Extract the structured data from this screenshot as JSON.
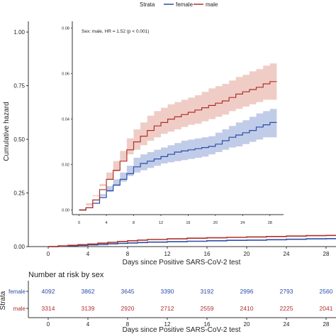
{
  "legend": {
    "title": "Strata",
    "items": [
      {
        "label": "female",
        "color": "#2b4ea8"
      },
      {
        "label": "male",
        "color": "#b0302a"
      }
    ]
  },
  "chart_data": [
    {
      "type": "line",
      "role": "main",
      "ylabel": "Cumulative hazard",
      "xlabel": "Days since Positive SARS-CoV-2 test",
      "xlim": [
        -2,
        29
      ],
      "ylim": [
        0,
        1.05
      ],
      "xticks": [
        0,
        4,
        8,
        12,
        16,
        20,
        24,
        28
      ],
      "xtick_labels": [
        "0",
        "4",
        "8",
        "12",
        "16",
        "20",
        "24",
        "28"
      ],
      "yticks": [
        0.0,
        0.25,
        0.5,
        0.75,
        1.0
      ],
      "ytick_labels": [
        "0.00",
        "0.25",
        "0.50",
        "0.75",
        "1.00"
      ],
      "series": [
        {
          "name": "female",
          "color": "#2b4ea8",
          "x": [
            0,
            1,
            2,
            3,
            4,
            5,
            6,
            7,
            8,
            9,
            10,
            12,
            14,
            16,
            18,
            20,
            22,
            24,
            26,
            28,
            29
          ],
          "y": [
            0.0,
            0.002,
            0.004,
            0.006,
            0.008,
            0.01,
            0.013,
            0.015,
            0.017,
            0.019,
            0.021,
            0.023,
            0.025,
            0.027,
            0.029,
            0.03,
            0.032,
            0.034,
            0.036,
            0.037,
            0.038
          ]
        },
        {
          "name": "male",
          "color": "#b0302a",
          "x": [
            0,
            1,
            2,
            3,
            4,
            5,
            6,
            7,
            8,
            9,
            10,
            12,
            14,
            16,
            18,
            20,
            22,
            24,
            26,
            28,
            29
          ],
          "y": [
            0.0,
            0.003,
            0.006,
            0.009,
            0.012,
            0.016,
            0.02,
            0.024,
            0.027,
            0.03,
            0.033,
            0.036,
            0.039,
            0.041,
            0.043,
            0.045,
            0.047,
            0.049,
            0.051,
            0.052,
            0.053
          ]
        }
      ]
    },
    {
      "type": "line",
      "role": "inset",
      "annotation": "Sex: male, HR = 1.52 (p < 0.001)",
      "xlim": [
        -1,
        30
      ],
      "ylim": [
        -0.002,
        0.083
      ],
      "xticks": [
        0,
        4,
        8,
        12,
        16,
        20,
        24,
        28
      ],
      "xtick_labels": [
        "0",
        "4",
        "8",
        "12",
        "16",
        "20",
        "24",
        "28"
      ],
      "yticks": [
        0.0,
        0.02,
        0.04,
        0.06,
        0.08
      ],
      "ytick_labels": [
        "0.00",
        "0.02",
        "0.04",
        "0.06",
        "0.08"
      ],
      "series": [
        {
          "name": "female",
          "color": "#2b4ea8",
          "band_color": "#9fb0dc",
          "x": [
            0,
            1,
            2,
            3,
            4,
            5,
            6,
            7,
            8,
            9,
            10,
            11,
            12,
            13,
            14,
            15,
            16,
            17,
            18,
            19,
            20,
            21,
            22,
            23,
            24,
            25,
            26,
            27,
            28,
            29
          ],
          "y": [
            0.0,
            0.001,
            0.003,
            0.0055,
            0.0085,
            0.011,
            0.0135,
            0.016,
            0.019,
            0.0205,
            0.0215,
            0.0225,
            0.0235,
            0.0245,
            0.0255,
            0.026,
            0.0265,
            0.027,
            0.0275,
            0.028,
            0.029,
            0.0305,
            0.032,
            0.033,
            0.034,
            0.035,
            0.0365,
            0.0375,
            0.0385,
            0.0385
          ],
          "lower": [
            0.0,
            0.0005,
            0.002,
            0.004,
            0.006,
            0.008,
            0.0105,
            0.0125,
            0.015,
            0.0165,
            0.0175,
            0.0185,
            0.0195,
            0.0205,
            0.021,
            0.0215,
            0.022,
            0.0225,
            0.023,
            0.0235,
            0.0245,
            0.0255,
            0.0265,
            0.0275,
            0.028,
            0.029,
            0.03,
            0.031,
            0.032,
            0.032
          ],
          "upper": [
            0.0,
            0.002,
            0.0045,
            0.007,
            0.0105,
            0.0135,
            0.0165,
            0.0195,
            0.023,
            0.0245,
            0.0255,
            0.0265,
            0.0275,
            0.0285,
            0.0295,
            0.0305,
            0.031,
            0.0315,
            0.032,
            0.0325,
            0.034,
            0.0355,
            0.037,
            0.0385,
            0.0395,
            0.041,
            0.0425,
            0.0435,
            0.0445,
            0.0445
          ]
        },
        {
          "name": "male",
          "color": "#b0302a",
          "band_color": "#e7b2a8",
          "x": [
            0,
            1,
            2,
            3,
            4,
            5,
            6,
            7,
            8,
            9,
            10,
            11,
            12,
            13,
            14,
            15,
            16,
            17,
            18,
            19,
            20,
            21,
            22,
            23,
            24,
            25,
            26,
            27,
            28,
            29
          ],
          "y": [
            0.0,
            0.001,
            0.0045,
            0.009,
            0.0135,
            0.0175,
            0.0215,
            0.0265,
            0.03,
            0.0325,
            0.035,
            0.037,
            0.0385,
            0.04,
            0.041,
            0.042,
            0.043,
            0.044,
            0.045,
            0.046,
            0.047,
            0.048,
            0.0495,
            0.051,
            0.052,
            0.053,
            0.054,
            0.0555,
            0.0565,
            0.0565
          ],
          "lower": [
            0.0,
            0.0005,
            0.003,
            0.0065,
            0.0105,
            0.0135,
            0.017,
            0.0215,
            0.0245,
            0.0265,
            0.0285,
            0.0305,
            0.032,
            0.0335,
            0.0345,
            0.0355,
            0.0365,
            0.0375,
            0.038,
            0.039,
            0.04,
            0.041,
            0.042,
            0.0435,
            0.0445,
            0.0455,
            0.0465,
            0.0475,
            0.0485,
            0.0485
          ],
          "upper": [
            0.0,
            0.002,
            0.006,
            0.0115,
            0.0165,
            0.0215,
            0.026,
            0.0315,
            0.0355,
            0.0385,
            0.0415,
            0.0435,
            0.045,
            0.0465,
            0.0475,
            0.0485,
            0.0495,
            0.0505,
            0.052,
            0.0535,
            0.0545,
            0.0555,
            0.057,
            0.0585,
            0.0595,
            0.061,
            0.062,
            0.0635,
            0.0645,
            0.0645
          ]
        }
      ]
    },
    {
      "type": "table",
      "role": "risk-table",
      "title": "Number at risk by sex",
      "ylabel": "Strata",
      "xlabel": "Days since Positive SARS-CoV-2 test",
      "xlim": [
        -2,
        29
      ],
      "xticks": [
        0,
        4,
        8,
        12,
        16,
        20,
        24,
        28
      ],
      "xtick_labels": [
        "0",
        "4",
        "8",
        "12",
        "16",
        "20",
        "24",
        "28"
      ],
      "rows": [
        {
          "label": "female",
          "color": "#2b4ea8",
          "values": [
            "4092",
            "3862",
            "3645",
            "3390",
            "3192",
            "2996",
            "2793",
            "2560"
          ]
        },
        {
          "label": "male",
          "color": "#b0302a",
          "values": [
            "3314",
            "3139",
            "2920",
            "2712",
            "2559",
            "2410",
            "2225",
            "2041"
          ]
        }
      ]
    }
  ]
}
